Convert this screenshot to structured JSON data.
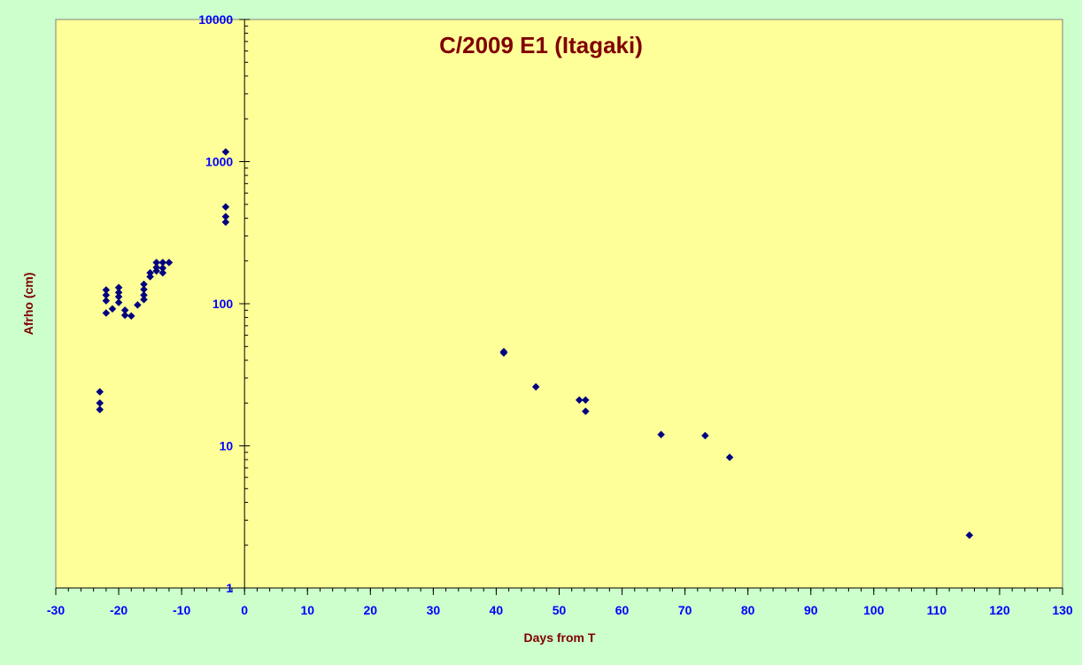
{
  "chart_data": {
    "type": "scatter",
    "title": "C/2009 E1 (Itagaki)",
    "xlabel": "Days from T",
    "ylabel": "Afrho (cm)",
    "x_scale": "linear",
    "y_scale": "log",
    "xlim": [
      -30,
      130
    ],
    "ylim": [
      1,
      10000
    ],
    "x_ticks": [
      -30,
      -20,
      -10,
      0,
      10,
      20,
      30,
      40,
      50,
      60,
      70,
      80,
      90,
      100,
      110,
      120,
      130
    ],
    "y_ticks": [
      1,
      10,
      100,
      1000,
      10000
    ],
    "grid": false,
    "legend": "none",
    "colors": {
      "background": "#ccffcc",
      "plot_area": "#ffff99",
      "marker": "#000080",
      "tick_labels": "#0000ff",
      "titles": "#800000"
    },
    "points": [
      {
        "x": -23,
        "y": 24
      },
      {
        "x": -23,
        "y": 20
      },
      {
        "x": -23,
        "y": 18
      },
      {
        "x": -22,
        "y": 125
      },
      {
        "x": -22,
        "y": 115
      },
      {
        "x": -22,
        "y": 105
      },
      {
        "x": -22,
        "y": 86
      },
      {
        "x": -21,
        "y": 92
      },
      {
        "x": -20,
        "y": 130
      },
      {
        "x": -20,
        "y": 120
      },
      {
        "x": -20,
        "y": 112
      },
      {
        "x": -20,
        "y": 102
      },
      {
        "x": -19,
        "y": 90
      },
      {
        "x": -19,
        "y": 83
      },
      {
        "x": -18,
        "y": 82
      },
      {
        "x": -17,
        "y": 98
      },
      {
        "x": -16,
        "y": 137
      },
      {
        "x": -16,
        "y": 126
      },
      {
        "x": -16,
        "y": 115
      },
      {
        "x": -16,
        "y": 107
      },
      {
        "x": -15,
        "y": 165
      },
      {
        "x": -15,
        "y": 155
      },
      {
        "x": -14,
        "y": 195
      },
      {
        "x": -14,
        "y": 180
      },
      {
        "x": -14,
        "y": 170
      },
      {
        "x": -13,
        "y": 195
      },
      {
        "x": -13,
        "y": 178
      },
      {
        "x": -13,
        "y": 165
      },
      {
        "x": -12,
        "y": 195
      },
      {
        "x": -3,
        "y": 1170
      },
      {
        "x": -3,
        "y": 480
      },
      {
        "x": -3,
        "y": 410
      },
      {
        "x": -3,
        "y": 375
      },
      {
        "x": 41.2,
        "y": 46
      },
      {
        "x": 41.2,
        "y": 45
      },
      {
        "x": 46.3,
        "y": 26
      },
      {
        "x": 53.2,
        "y": 21
      },
      {
        "x": 54.2,
        "y": 21
      },
      {
        "x": 54.2,
        "y": 17.5
      },
      {
        "x": 66.2,
        "y": 12
      },
      {
        "x": 73.2,
        "y": 11.8
      },
      {
        "x": 77.1,
        "y": 8.3
      },
      {
        "x": 115.2,
        "y": 2.35
      }
    ]
  }
}
